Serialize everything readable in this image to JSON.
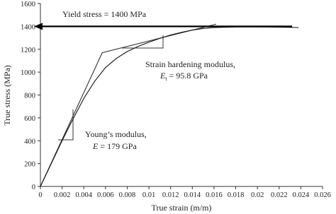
{
  "chart_data": {
    "type": "line",
    "xlabel": "True strain (m/m)",
    "ylabel": "True stress (MPa)",
    "xlim": [
      0,
      0.026
    ],
    "ylim": [
      0,
      1600
    ],
    "xticks": [
      0,
      0.002,
      0.004,
      0.006,
      0.008,
      0.01,
      0.012,
      0.014,
      0.016,
      0.018,
      0.02,
      0.022,
      0.024,
      0.026
    ],
    "yticks": [
      0,
      200,
      400,
      600,
      800,
      1000,
      1200,
      1400,
      1600
    ],
    "grid": false,
    "series": [
      {
        "color": "#333333",
        "x": [
          0,
          0.0057,
          0.0162
        ],
        "values": [
          0,
          1170,
          1420
        ]
      },
      {
        "color": "#111111",
        "x": [
          0,
          0.001,
          0.002,
          0.003,
          0.004,
          0.005,
          0.006,
          0.007,
          0.008,
          0.009,
          0.01,
          0.011,
          0.012,
          0.013,
          0.014,
          0.015,
          0.016,
          0.018,
          0.02,
          0.022,
          0.0238
        ],
        "values": [
          0,
          200,
          400,
          590,
          770,
          920,
          1040,
          1120,
          1180,
          1225,
          1262,
          1295,
          1325,
          1348,
          1368,
          1382,
          1390,
          1395,
          1395,
          1393,
          1390
        ]
      }
    ],
    "yield_line": {
      "y": 1400,
      "x_end": 0.0232
    },
    "annotations": {
      "yield": "Yield stress = 1400 MPa",
      "hardening": "Strain hardening modulus,",
      "hardening_value": {
        "symbol": "E",
        "sub": "t",
        "text": " = 95.8 GPa"
      },
      "youngs": "Young’s modulus,",
      "youngs_value": {
        "symbol": "E",
        "text": " = 179 GPa"
      }
    }
  }
}
